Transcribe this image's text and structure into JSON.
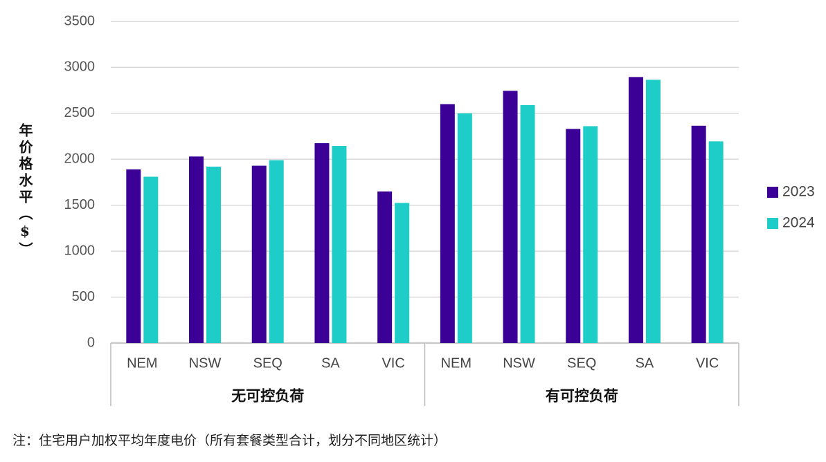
{
  "chart_data": {
    "type": "bar",
    "y_label": "年价格水平（$）",
    "categories": [
      "NEM",
      "NSW",
      "SEQ",
      "SA",
      "VIC",
      "NEM",
      "NSW",
      "SEQ",
      "SA",
      "VIC"
    ],
    "groups": [
      "无可控负荷",
      "有可控负荷"
    ],
    "series": [
      {
        "name": "2023",
        "color": "#3b0096",
        "values": [
          1890,
          2030,
          1930,
          2175,
          1650,
          2600,
          2745,
          2330,
          2895,
          2365
        ]
      },
      {
        "name": "2024",
        "color": "#1ecdc7",
        "values": [
          1810,
          1920,
          1990,
          2145,
          1525,
          2500,
          2590,
          2360,
          2865,
          2195
        ]
      }
    ],
    "ylim": [
      0,
      3500
    ],
    "yticks": [
      0,
      500,
      1000,
      1500,
      2000,
      2500,
      3000,
      3500
    ],
    "grid": true,
    "legend": "right",
    "note": "注：住宅用户加权平均年度电价（所有套餐类型合计，划分不同地区统计）"
  }
}
